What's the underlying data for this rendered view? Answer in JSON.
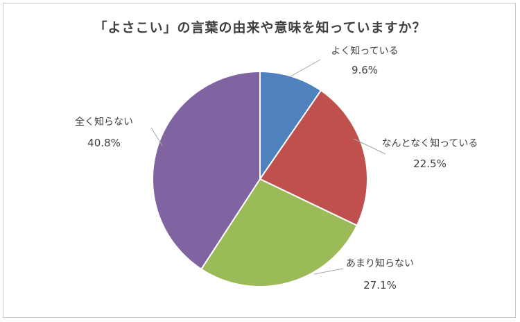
{
  "chart_data": {
    "type": "pie",
    "title": "「よさこい」の言葉の由来や意味を知っていますか？",
    "start_angle_deg": 0,
    "direction": "clockwise",
    "slices": [
      {
        "label": "よく知っている",
        "value": 9.6,
        "value_text": "9.6%",
        "color": "#4F81BD"
      },
      {
        "label": "なんとなく知っている",
        "value": 22.5,
        "value_text": "22.5%",
        "color": "#C0504D"
      },
      {
        "label": "あまり知らない",
        "value": 27.1,
        "value_text": "27.1%",
        "color": "#9BBB59"
      },
      {
        "label": "全く知らない",
        "value": 40.8,
        "value_text": "40.8%",
        "color": "#8064A2"
      }
    ],
    "legend": false,
    "data_labels": "category and percentage with leader lines"
  }
}
